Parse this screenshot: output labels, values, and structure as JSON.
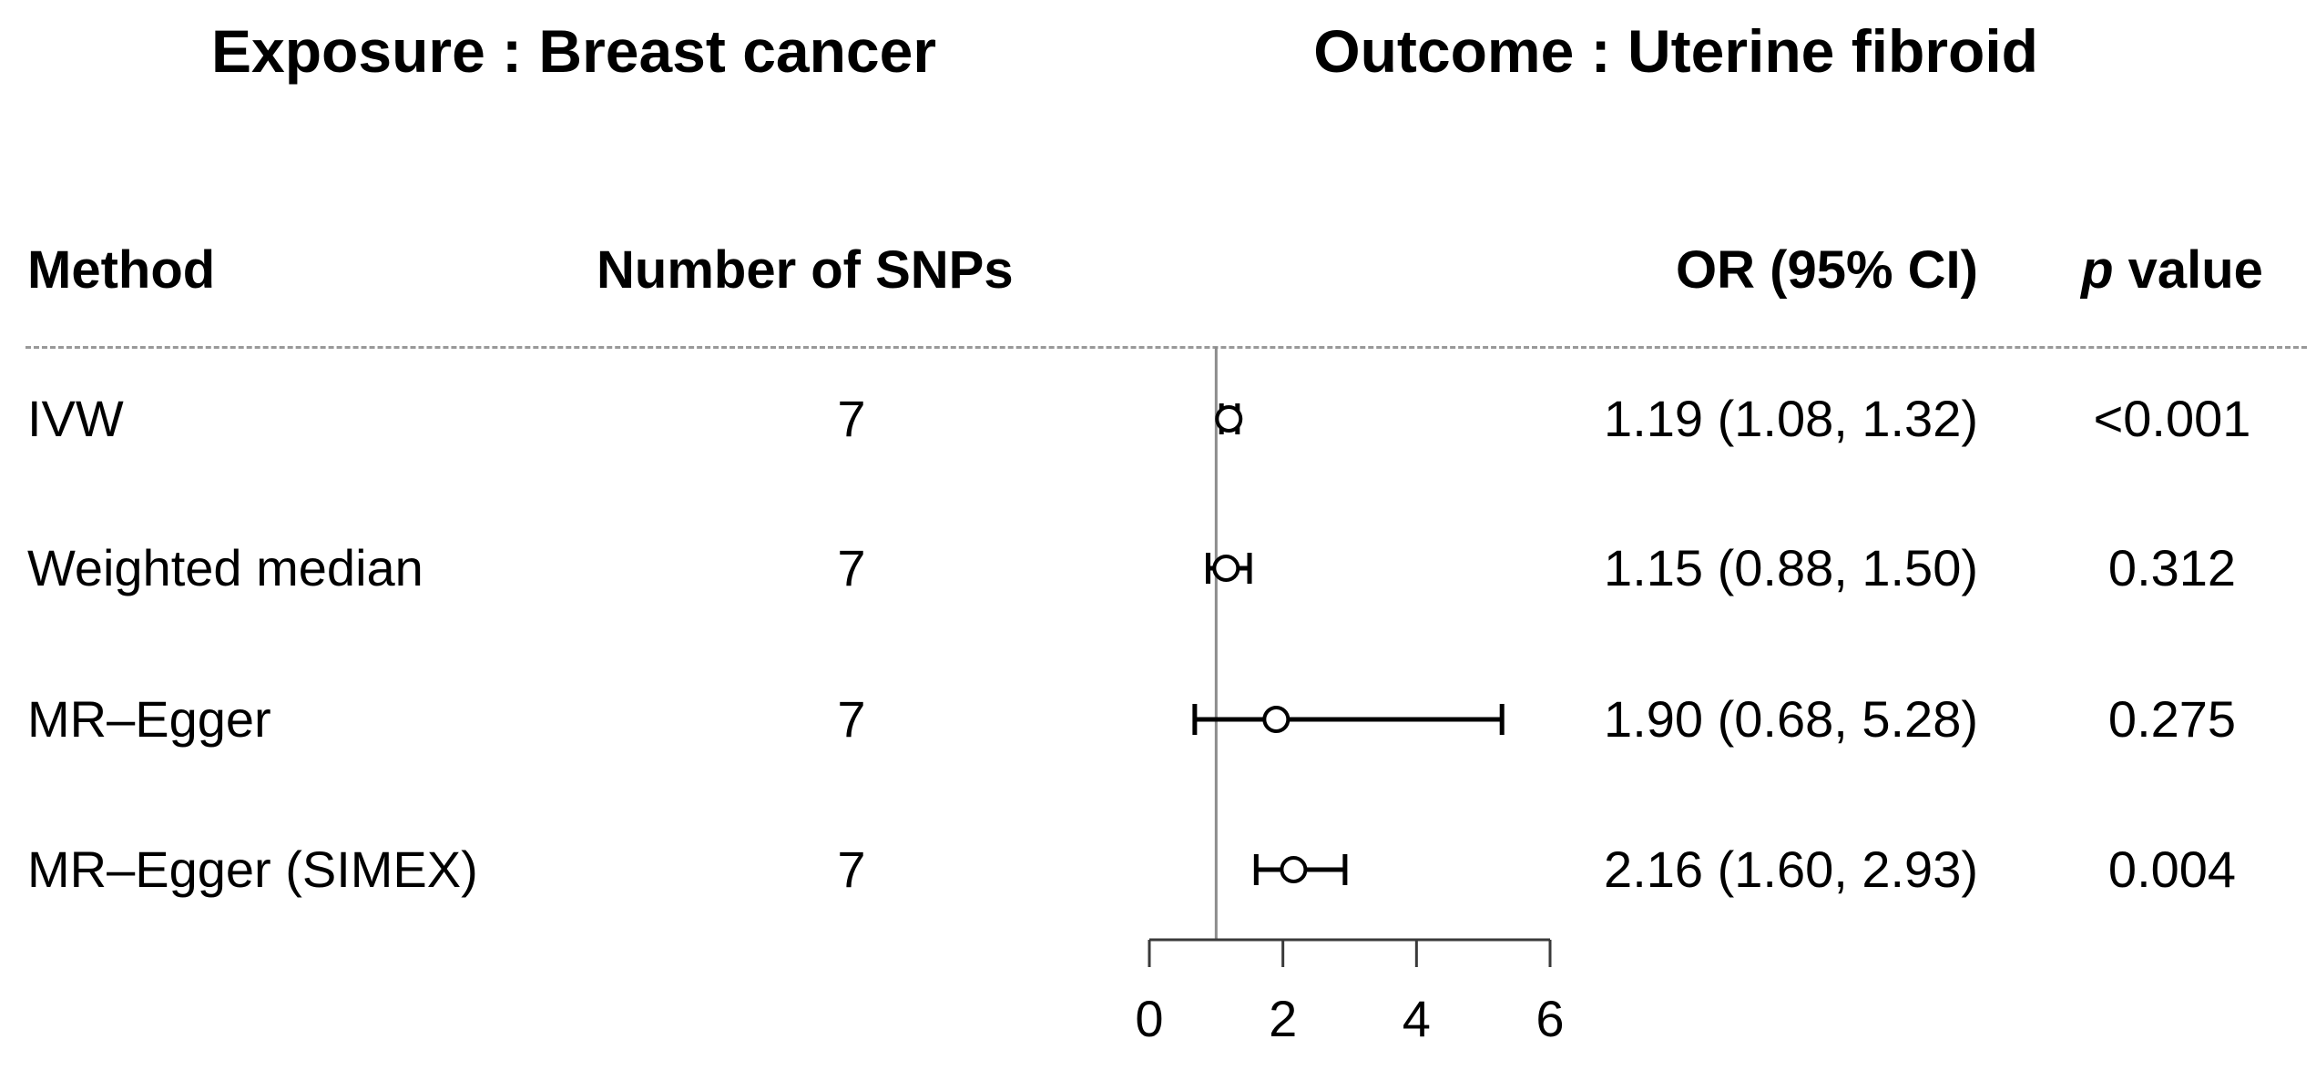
{
  "title": {
    "exposure": "Exposure : Breast cancer",
    "outcome": "Outcome : Uterine fibroid"
  },
  "columns": {
    "method": "Method",
    "snps": "Number of SNPs",
    "or_ci": "OR (95% CI)",
    "p_prefix": "p",
    "p_suffix": " value"
  },
  "rows": [
    {
      "method": "IVW",
      "snps": "7",
      "or_ci": "1.19 (1.08, 1.32)",
      "p": "<0.001"
    },
    {
      "method": "Weighted median",
      "snps": "7",
      "or_ci": "1.15 (0.88, 1.50)",
      "p": "0.312"
    },
    {
      "method": "MR–Egger",
      "snps": "7",
      "or_ci": "1.90 (0.68, 5.28)",
      "p": "0.275"
    },
    {
      "method": "MR–Egger (SIMEX)",
      "snps": "7",
      "or_ci": "2.16 (1.60, 2.93)",
      "p": "0.004"
    }
  ],
  "chart_data": {
    "type": "scatter",
    "subtype": "forest-plot",
    "title": "Exposure : Breast cancer  Outcome : Uterine fibroid",
    "xlabel": "",
    "ylabel": "",
    "xlim": [
      0,
      6
    ],
    "x_ticks": [
      0,
      2,
      4,
      6
    ],
    "reference_line_x": 1,
    "grid": false,
    "series": [
      {
        "name": "IVW",
        "n_snps": 7,
        "or": 1.19,
        "ci_low": 1.08,
        "ci_high": 1.32,
        "p": "<0.001"
      },
      {
        "name": "Weighted median",
        "n_snps": 7,
        "or": 1.15,
        "ci_low": 0.88,
        "ci_high": 1.5,
        "p": "0.312"
      },
      {
        "name": "MR–Egger",
        "n_snps": 7,
        "or": 1.9,
        "ci_low": 0.68,
        "ci_high": 5.28,
        "p": "0.275"
      },
      {
        "name": "MR–Egger (SIMEX)",
        "n_snps": 7,
        "or": 2.16,
        "ci_low": 1.6,
        "ci_high": 2.93,
        "p": "0.004"
      }
    ]
  },
  "colors": {
    "text": "#000000",
    "reference_line": "#8c8c8c",
    "axis": "#3a3a3a",
    "marker_stroke": "#000000",
    "marker_fill": "#ffffff",
    "divider": "#999999",
    "background": "#ffffff"
  }
}
